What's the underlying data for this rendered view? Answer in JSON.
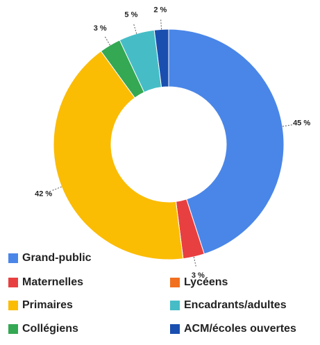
{
  "chart_data": {
    "type": "donut",
    "categories": [
      "Grand-public",
      "Maternelles",
      "Lycéens",
      "Primaires",
      "Collégiens",
      "Encadrants/adultes",
      "ACM/écoles ouvertes"
    ],
    "values": [
      45,
      3,
      0,
      42,
      3,
      5,
      2
    ],
    "value_labels": [
      "45 %",
      "3 %",
      null,
      "42 %",
      "3 %",
      "5 %",
      "2 %"
    ],
    "colors": [
      "#4a86e8",
      "#e84040",
      "#f07020",
      "#fbbc04",
      "#34a853",
      "#46bdc6",
      "#1a4fb0"
    ],
    "legend": "bottom"
  }
}
